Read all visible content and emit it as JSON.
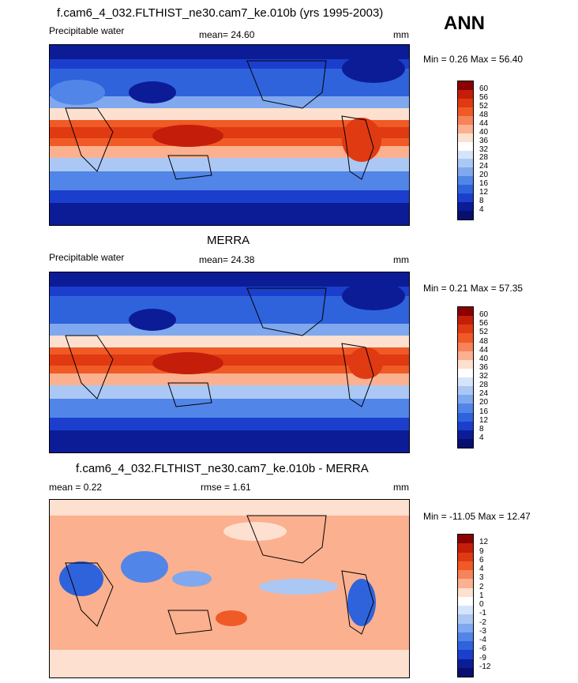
{
  "season": "ANN",
  "panels": [
    {
      "title": "f.cam6_4_032.FLTHIST_ne30.cam7_ke.010b (yrs 1995-2003)",
      "left_label": "Precipitable water",
      "center_label": "mean=  24.60",
      "units": "mm",
      "minmax": "Min =   0.26 Max =  56.40"
    },
    {
      "title": "MERRA",
      "left_label": "Precipitable water",
      "center_label": "mean=  24.38",
      "units": "mm",
      "minmax": "Min =   0.21 Max =  57.35"
    },
    {
      "title": "f.cam6_4_032.FLTHIST_ne30.cam7_ke.010b - MERRA",
      "left_label": "mean =   0.22",
      "center_label": "rmse =   1.61",
      "units": "mm",
      "minmax": "Min = -11.05 Max =  12.47"
    }
  ],
  "chart_data": [
    {
      "type": "heatmap",
      "title": "f.cam6_4_032.FLTHIST_ne30.cam7_ke.010b (yrs 1995-2003)",
      "variable": "Precipitable water",
      "units": "mm",
      "mean": 24.6,
      "min": 0.26,
      "max": 56.4,
      "colorbar_levels": [
        60,
        56,
        52,
        48,
        44,
        40,
        36,
        32,
        28,
        24,
        20,
        16,
        12,
        8,
        4
      ],
      "colorbar_colors": [
        "#8b0000",
        "#c41e0a",
        "#e03a12",
        "#f05a26",
        "#f6835a",
        "#fbb08f",
        "#fde0cf",
        "#ffffff",
        "#d6e4fb",
        "#abc8f5",
        "#7fa8ee",
        "#5285e8",
        "#2f63dc",
        "#1b3fcc",
        "#0b1c96",
        "#071070"
      ]
    },
    {
      "type": "heatmap",
      "title": "MERRA",
      "variable": "Precipitable water",
      "units": "mm",
      "mean": 24.38,
      "min": 0.21,
      "max": 57.35,
      "colorbar_levels": [
        60,
        56,
        52,
        48,
        44,
        40,
        36,
        32,
        28,
        24,
        20,
        16,
        12,
        8,
        4
      ],
      "colorbar_colors": [
        "#8b0000",
        "#c41e0a",
        "#e03a12",
        "#f05a26",
        "#f6835a",
        "#fbb08f",
        "#fde0cf",
        "#ffffff",
        "#d6e4fb",
        "#abc8f5",
        "#7fa8ee",
        "#5285e8",
        "#2f63dc",
        "#1b3fcc",
        "#0b1c96",
        "#071070"
      ]
    },
    {
      "type": "heatmap",
      "title": "f.cam6_4_032.FLTHIST_ne30.cam7_ke.010b - MERRA",
      "units": "mm",
      "mean": 0.22,
      "rmse": 1.61,
      "min": -11.05,
      "max": 12.47,
      "colorbar_levels": [
        12,
        9,
        6,
        4,
        3,
        2,
        1,
        0,
        -1,
        -2,
        -3,
        -4,
        -6,
        -9,
        -12
      ],
      "colorbar_colors": [
        "#8b0000",
        "#c41e0a",
        "#e03a12",
        "#f05a26",
        "#f6835a",
        "#fbb08f",
        "#fde0cf",
        "#ffffff",
        "#d6e4fb",
        "#abc8f5",
        "#7fa8ee",
        "#5285e8",
        "#2f63dc",
        "#1b3fcc",
        "#0b1c96",
        "#071070"
      ]
    }
  ]
}
